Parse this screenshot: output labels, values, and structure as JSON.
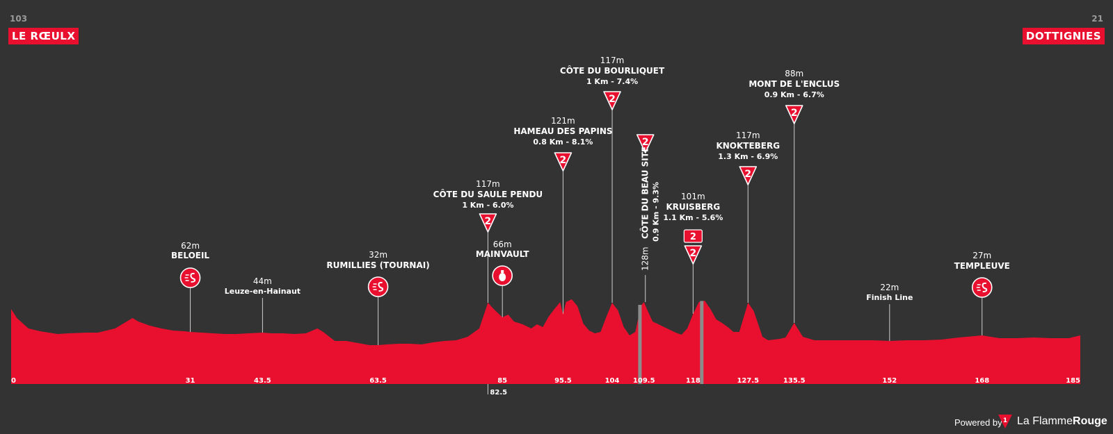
{
  "start": {
    "number": "103",
    "name": "LE RŒULX"
  },
  "finish": {
    "number": "21",
    "name": "DOTTIGNIES"
  },
  "chart_data": {
    "type": "area",
    "title": "",
    "xlabel": "",
    "ylabel": "",
    "xlim": [
      0,
      185
    ],
    "ylim": [
      0,
      140
    ],
    "profile_color": "#e8102e",
    "background_color": "#333333",
    "profile": [
      [
        0,
        108
      ],
      [
        1,
        95
      ],
      [
        3,
        80
      ],
      [
        5,
        76
      ],
      [
        8,
        72
      ],
      [
        10,
        73
      ],
      [
        13,
        74
      ],
      [
        15,
        74
      ],
      [
        17,
        78
      ],
      [
        18,
        80
      ],
      [
        20,
        90
      ],
      [
        21,
        95
      ],
      [
        22,
        90
      ],
      [
        24,
        84
      ],
      [
        26,
        80
      ],
      [
        28,
        77
      ],
      [
        30,
        76
      ],
      [
        31,
        75
      ],
      [
        33,
        74
      ],
      [
        35,
        73
      ],
      [
        37,
        72
      ],
      [
        39,
        72
      ],
      [
        41,
        73
      ],
      [
        43.5,
        74
      ],
      [
        45,
        73
      ],
      [
        47,
        73
      ],
      [
        49,
        72
      ],
      [
        51,
        73
      ],
      [
        53,
        80
      ],
      [
        54,
        75
      ],
      [
        56,
        62
      ],
      [
        58,
        62
      ],
      [
        60,
        59
      ],
      [
        62,
        56
      ],
      [
        63.5,
        56
      ],
      [
        65,
        57
      ],
      [
        67,
        58
      ],
      [
        69,
        58
      ],
      [
        71,
        57
      ],
      [
        73,
        60
      ],
      [
        75,
        62
      ],
      [
        77,
        63
      ],
      [
        79,
        68
      ],
      [
        81,
        80
      ],
      [
        82.5,
        117
      ],
      [
        83.5,
        108
      ],
      [
        85,
        96
      ],
      [
        86,
        100
      ],
      [
        87,
        90
      ],
      [
        88.5,
        86
      ],
      [
        90,
        80
      ],
      [
        91,
        86
      ],
      [
        92,
        82
      ],
      [
        93,
        97
      ],
      [
        94,
        108
      ],
      [
        95,
        118
      ],
      [
        95.5,
        100
      ],
      [
        96,
        118
      ],
      [
        97,
        122
      ],
      [
        98,
        112
      ],
      [
        99,
        87
      ],
      [
        100,
        77
      ],
      [
        101,
        73
      ],
      [
        102,
        75
      ],
      [
        103,
        97
      ],
      [
        104,
        117
      ],
      [
        105,
        106
      ],
      [
        106,
        82
      ],
      [
        107,
        70
      ],
      [
        108,
        75
      ],
      [
        109,
        113
      ],
      [
        109.5,
        118
      ],
      [
        110,
        108
      ],
      [
        111,
        90
      ],
      [
        113,
        82
      ],
      [
        115,
        74
      ],
      [
        116,
        71
      ],
      [
        117,
        80
      ],
      [
        118,
        101
      ],
      [
        119,
        118
      ],
      [
        120,
        120
      ],
      [
        121,
        108
      ],
      [
        122,
        93
      ],
      [
        123,
        88
      ],
      [
        124,
        82
      ],
      [
        125,
        75
      ],
      [
        126,
        75
      ],
      [
        127.5,
        117
      ],
      [
        128.5,
        105
      ],
      [
        130,
        68
      ],
      [
        131,
        63
      ],
      [
        133,
        65
      ],
      [
        134,
        67
      ],
      [
        135.5,
        88
      ],
      [
        137,
        68
      ],
      [
        139,
        63
      ],
      [
        141,
        63
      ],
      [
        143,
        63
      ],
      [
        146,
        63
      ],
      [
        149,
        63
      ],
      [
        152,
        62
      ],
      [
        155,
        63
      ],
      [
        158,
        63
      ],
      [
        161,
        64
      ],
      [
        164,
        67
      ],
      [
        168,
        70
      ],
      [
        171,
        66
      ],
      [
        174,
        66
      ],
      [
        177,
        67
      ],
      [
        180,
        66
      ],
      [
        183,
        66
      ],
      [
        185,
        70
      ]
    ],
    "cobbled_sectors": [
      [
        108.5,
        109.1
      ],
      [
        119.2,
        119.8
      ]
    ],
    "x_ticks": [
      {
        "km": 0,
        "label": "0"
      },
      {
        "km": 31,
        "label": "31"
      },
      {
        "km": 43.5,
        "label": "43.5"
      },
      {
        "km": 63.5,
        "label": "63.5"
      },
      {
        "km": 82.5,
        "label": "82.5"
      },
      {
        "km": 85,
        "label": "85"
      },
      {
        "km": 95.5,
        "label": "95.5"
      },
      {
        "km": 104,
        "label": "104"
      },
      {
        "km": 109.5,
        "label": "109.5"
      },
      {
        "km": 118,
        "label": "118"
      },
      {
        "km": 127.5,
        "label": "127.5"
      },
      {
        "km": 135.5,
        "label": "135.5"
      },
      {
        "km": 152,
        "label": "152"
      },
      {
        "km": 168,
        "label": "168"
      },
      {
        "km": 185,
        "label": "185"
      }
    ],
    "waypoints": [
      {
        "km": 31,
        "type": "sprint",
        "altitude": "62m",
        "name": "BELOEIL"
      },
      {
        "km": 43.5,
        "type": "town",
        "altitude": "44m",
        "name": "Leuze-en-Hainaut"
      },
      {
        "km": 63.5,
        "type": "sprint",
        "altitude": "32m",
        "name": "RUMILLIES (TOURNAI)"
      },
      {
        "km": 82.5,
        "type": "climb",
        "category": "2",
        "altitude": "117m",
        "name": "CÔTE DU SAULE PENDU",
        "stats": "1 Km - 6.0%"
      },
      {
        "km": 85,
        "type": "feed",
        "altitude": "66m",
        "name": "MAINVAULT"
      },
      {
        "km": 95.5,
        "type": "climb",
        "category": "2",
        "altitude": "121m",
        "name": "HAMEAU DES PAPINS",
        "stats": "0.8 Km - 8.1%"
      },
      {
        "km": 104,
        "type": "climb",
        "category": "2",
        "altitude": "117m",
        "name": "CÔTE DU BOURLIQUET",
        "stats": "1 Km - 7.4%"
      },
      {
        "km": 109.5,
        "type": "climb-vertical",
        "category": "2",
        "altitude": "128m",
        "name": "CÔTE DU BEAU SITE",
        "stats": "0.9 Km - 9.3%"
      },
      {
        "km": 118,
        "type": "climb",
        "category": "2",
        "badge": "2",
        "altitude": "101m",
        "name": "KRUISBERG",
        "stats": "1.1 Km - 5.6%"
      },
      {
        "km": 127.5,
        "type": "climb",
        "category": "2",
        "altitude": "117m",
        "name": "KNOKTEBERG",
        "stats": "1.3 Km - 6.9%"
      },
      {
        "km": 135.5,
        "type": "climb",
        "category": "2",
        "altitude": "88m",
        "name": "MONT DE L'ENCLUS",
        "stats": "0.9 Km - 6.7%"
      },
      {
        "km": 152,
        "type": "town",
        "altitude": "22m",
        "name": "Finish Line"
      },
      {
        "km": 168,
        "type": "sprint",
        "altitude": "27m",
        "name": "TEMPLEUVE"
      }
    ]
  },
  "footer": {
    "powered": "Powered by",
    "brand_regular": "La Flamme",
    "brand_bold": "Rouge",
    "logo_num": "1"
  }
}
